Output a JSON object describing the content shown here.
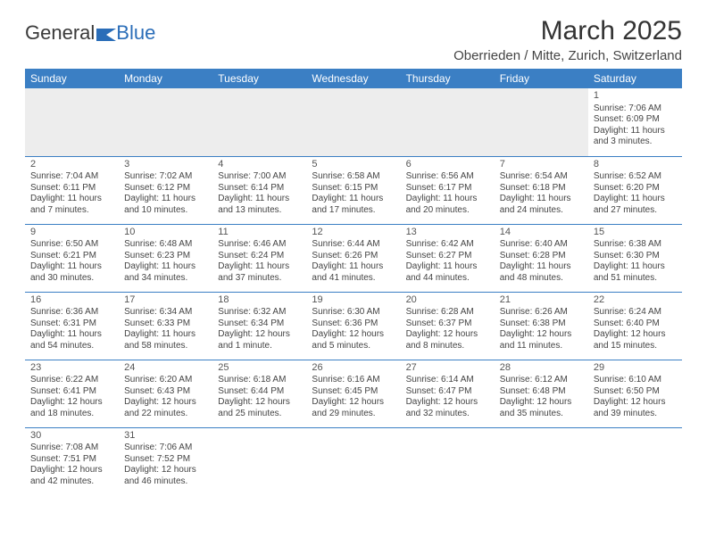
{
  "logo": {
    "text1": "General",
    "text2": "Blue"
  },
  "title": "March 2025",
  "location": "Oberrieden / Mitte, Zurich, Switzerland",
  "days_of_week": [
    "Sunday",
    "Monday",
    "Tuesday",
    "Wednesday",
    "Thursday",
    "Friday",
    "Saturday"
  ],
  "colors": {
    "header_bg": "#3b7fc4",
    "header_text": "#ffffff",
    "border": "#3b7fc4",
    "logo_blue": "#2a6db8"
  },
  "weeks": [
    [
      null,
      null,
      null,
      null,
      null,
      null,
      {
        "n": "1",
        "sr": "Sunrise: 7:06 AM",
        "ss": "Sunset: 6:09 PM",
        "dl1": "Daylight: 11 hours",
        "dl2": "and 3 minutes."
      }
    ],
    [
      {
        "n": "2",
        "sr": "Sunrise: 7:04 AM",
        "ss": "Sunset: 6:11 PM",
        "dl1": "Daylight: 11 hours",
        "dl2": "and 7 minutes."
      },
      {
        "n": "3",
        "sr": "Sunrise: 7:02 AM",
        "ss": "Sunset: 6:12 PM",
        "dl1": "Daylight: 11 hours",
        "dl2": "and 10 minutes."
      },
      {
        "n": "4",
        "sr": "Sunrise: 7:00 AM",
        "ss": "Sunset: 6:14 PM",
        "dl1": "Daylight: 11 hours",
        "dl2": "and 13 minutes."
      },
      {
        "n": "5",
        "sr": "Sunrise: 6:58 AM",
        "ss": "Sunset: 6:15 PM",
        "dl1": "Daylight: 11 hours",
        "dl2": "and 17 minutes."
      },
      {
        "n": "6",
        "sr": "Sunrise: 6:56 AM",
        "ss": "Sunset: 6:17 PM",
        "dl1": "Daylight: 11 hours",
        "dl2": "and 20 minutes."
      },
      {
        "n": "7",
        "sr": "Sunrise: 6:54 AM",
        "ss": "Sunset: 6:18 PM",
        "dl1": "Daylight: 11 hours",
        "dl2": "and 24 minutes."
      },
      {
        "n": "8",
        "sr": "Sunrise: 6:52 AM",
        "ss": "Sunset: 6:20 PM",
        "dl1": "Daylight: 11 hours",
        "dl2": "and 27 minutes."
      }
    ],
    [
      {
        "n": "9",
        "sr": "Sunrise: 6:50 AM",
        "ss": "Sunset: 6:21 PM",
        "dl1": "Daylight: 11 hours",
        "dl2": "and 30 minutes."
      },
      {
        "n": "10",
        "sr": "Sunrise: 6:48 AM",
        "ss": "Sunset: 6:23 PM",
        "dl1": "Daylight: 11 hours",
        "dl2": "and 34 minutes."
      },
      {
        "n": "11",
        "sr": "Sunrise: 6:46 AM",
        "ss": "Sunset: 6:24 PM",
        "dl1": "Daylight: 11 hours",
        "dl2": "and 37 minutes."
      },
      {
        "n": "12",
        "sr": "Sunrise: 6:44 AM",
        "ss": "Sunset: 6:26 PM",
        "dl1": "Daylight: 11 hours",
        "dl2": "and 41 minutes."
      },
      {
        "n": "13",
        "sr": "Sunrise: 6:42 AM",
        "ss": "Sunset: 6:27 PM",
        "dl1": "Daylight: 11 hours",
        "dl2": "and 44 minutes."
      },
      {
        "n": "14",
        "sr": "Sunrise: 6:40 AM",
        "ss": "Sunset: 6:28 PM",
        "dl1": "Daylight: 11 hours",
        "dl2": "and 48 minutes."
      },
      {
        "n": "15",
        "sr": "Sunrise: 6:38 AM",
        "ss": "Sunset: 6:30 PM",
        "dl1": "Daylight: 11 hours",
        "dl2": "and 51 minutes."
      }
    ],
    [
      {
        "n": "16",
        "sr": "Sunrise: 6:36 AM",
        "ss": "Sunset: 6:31 PM",
        "dl1": "Daylight: 11 hours",
        "dl2": "and 54 minutes."
      },
      {
        "n": "17",
        "sr": "Sunrise: 6:34 AM",
        "ss": "Sunset: 6:33 PM",
        "dl1": "Daylight: 11 hours",
        "dl2": "and 58 minutes."
      },
      {
        "n": "18",
        "sr": "Sunrise: 6:32 AM",
        "ss": "Sunset: 6:34 PM",
        "dl1": "Daylight: 12 hours",
        "dl2": "and 1 minute."
      },
      {
        "n": "19",
        "sr": "Sunrise: 6:30 AM",
        "ss": "Sunset: 6:36 PM",
        "dl1": "Daylight: 12 hours",
        "dl2": "and 5 minutes."
      },
      {
        "n": "20",
        "sr": "Sunrise: 6:28 AM",
        "ss": "Sunset: 6:37 PM",
        "dl1": "Daylight: 12 hours",
        "dl2": "and 8 minutes."
      },
      {
        "n": "21",
        "sr": "Sunrise: 6:26 AM",
        "ss": "Sunset: 6:38 PM",
        "dl1": "Daylight: 12 hours",
        "dl2": "and 11 minutes."
      },
      {
        "n": "22",
        "sr": "Sunrise: 6:24 AM",
        "ss": "Sunset: 6:40 PM",
        "dl1": "Daylight: 12 hours",
        "dl2": "and 15 minutes."
      }
    ],
    [
      {
        "n": "23",
        "sr": "Sunrise: 6:22 AM",
        "ss": "Sunset: 6:41 PM",
        "dl1": "Daylight: 12 hours",
        "dl2": "and 18 minutes."
      },
      {
        "n": "24",
        "sr": "Sunrise: 6:20 AM",
        "ss": "Sunset: 6:43 PM",
        "dl1": "Daylight: 12 hours",
        "dl2": "and 22 minutes."
      },
      {
        "n": "25",
        "sr": "Sunrise: 6:18 AM",
        "ss": "Sunset: 6:44 PM",
        "dl1": "Daylight: 12 hours",
        "dl2": "and 25 minutes."
      },
      {
        "n": "26",
        "sr": "Sunrise: 6:16 AM",
        "ss": "Sunset: 6:45 PM",
        "dl1": "Daylight: 12 hours",
        "dl2": "and 29 minutes."
      },
      {
        "n": "27",
        "sr": "Sunrise: 6:14 AM",
        "ss": "Sunset: 6:47 PM",
        "dl1": "Daylight: 12 hours",
        "dl2": "and 32 minutes."
      },
      {
        "n": "28",
        "sr": "Sunrise: 6:12 AM",
        "ss": "Sunset: 6:48 PM",
        "dl1": "Daylight: 12 hours",
        "dl2": "and 35 minutes."
      },
      {
        "n": "29",
        "sr": "Sunrise: 6:10 AM",
        "ss": "Sunset: 6:50 PM",
        "dl1": "Daylight: 12 hours",
        "dl2": "and 39 minutes."
      }
    ],
    [
      {
        "n": "30",
        "sr": "Sunrise: 7:08 AM",
        "ss": "Sunset: 7:51 PM",
        "dl1": "Daylight: 12 hours",
        "dl2": "and 42 minutes."
      },
      {
        "n": "31",
        "sr": "Sunrise: 7:06 AM",
        "ss": "Sunset: 7:52 PM",
        "dl1": "Daylight: 12 hours",
        "dl2": "and 46 minutes."
      },
      null,
      null,
      null,
      null,
      null
    ]
  ]
}
